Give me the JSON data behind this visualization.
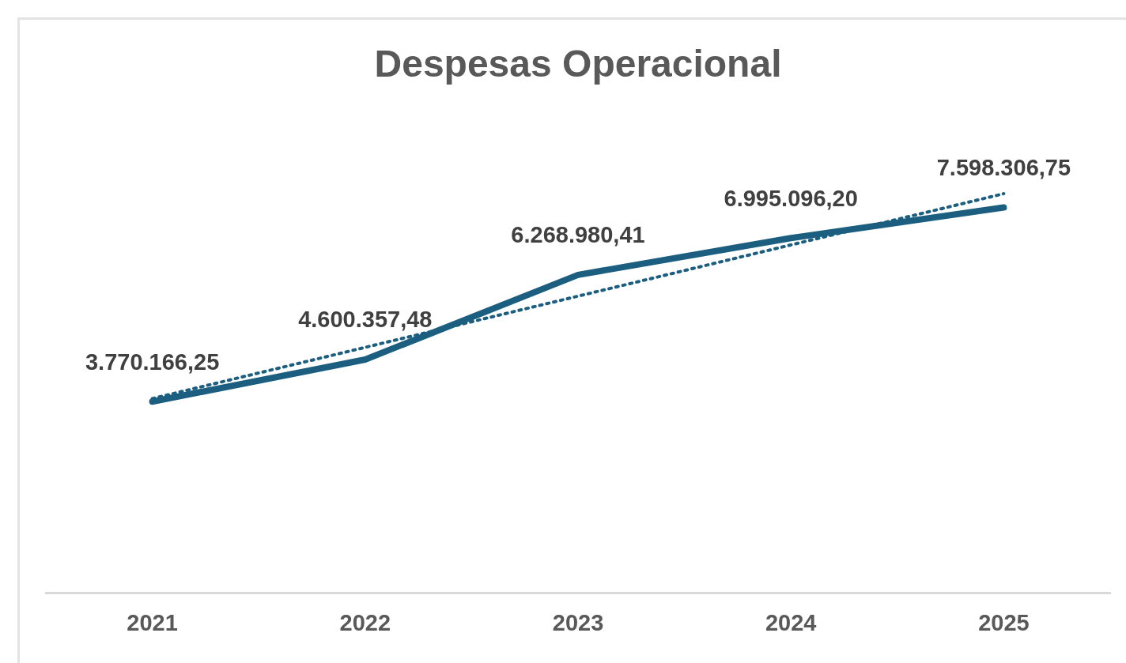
{
  "chart_data": {
    "type": "line",
    "title": "Despesas Operacional",
    "categories": [
      "2021",
      "2022",
      "2023",
      "2024",
      "2025"
    ],
    "series": [
      {
        "color": "#1b5e80",
        "values": [
          3770166.25,
          4600357.48,
          6268980.41,
          6995096.2,
          7598306.75
        ],
        "value_labels": [
          "3.770.166,25",
          "4.600.357,48",
          "6.268.980,41",
          "6.995.096,20",
          "7.598.306,75"
        ]
      },
      {
        "type": "line",
        "line_style": "dotted",
        "color": "#1b5e80",
        "values": [
          3830000,
          4840000,
          5850000,
          6860000,
          7870000
        ]
      }
    ],
    "marker": "none",
    "line_style": "solid",
    "grid": false,
    "legend": false,
    "tick_labels": "x"
  }
}
